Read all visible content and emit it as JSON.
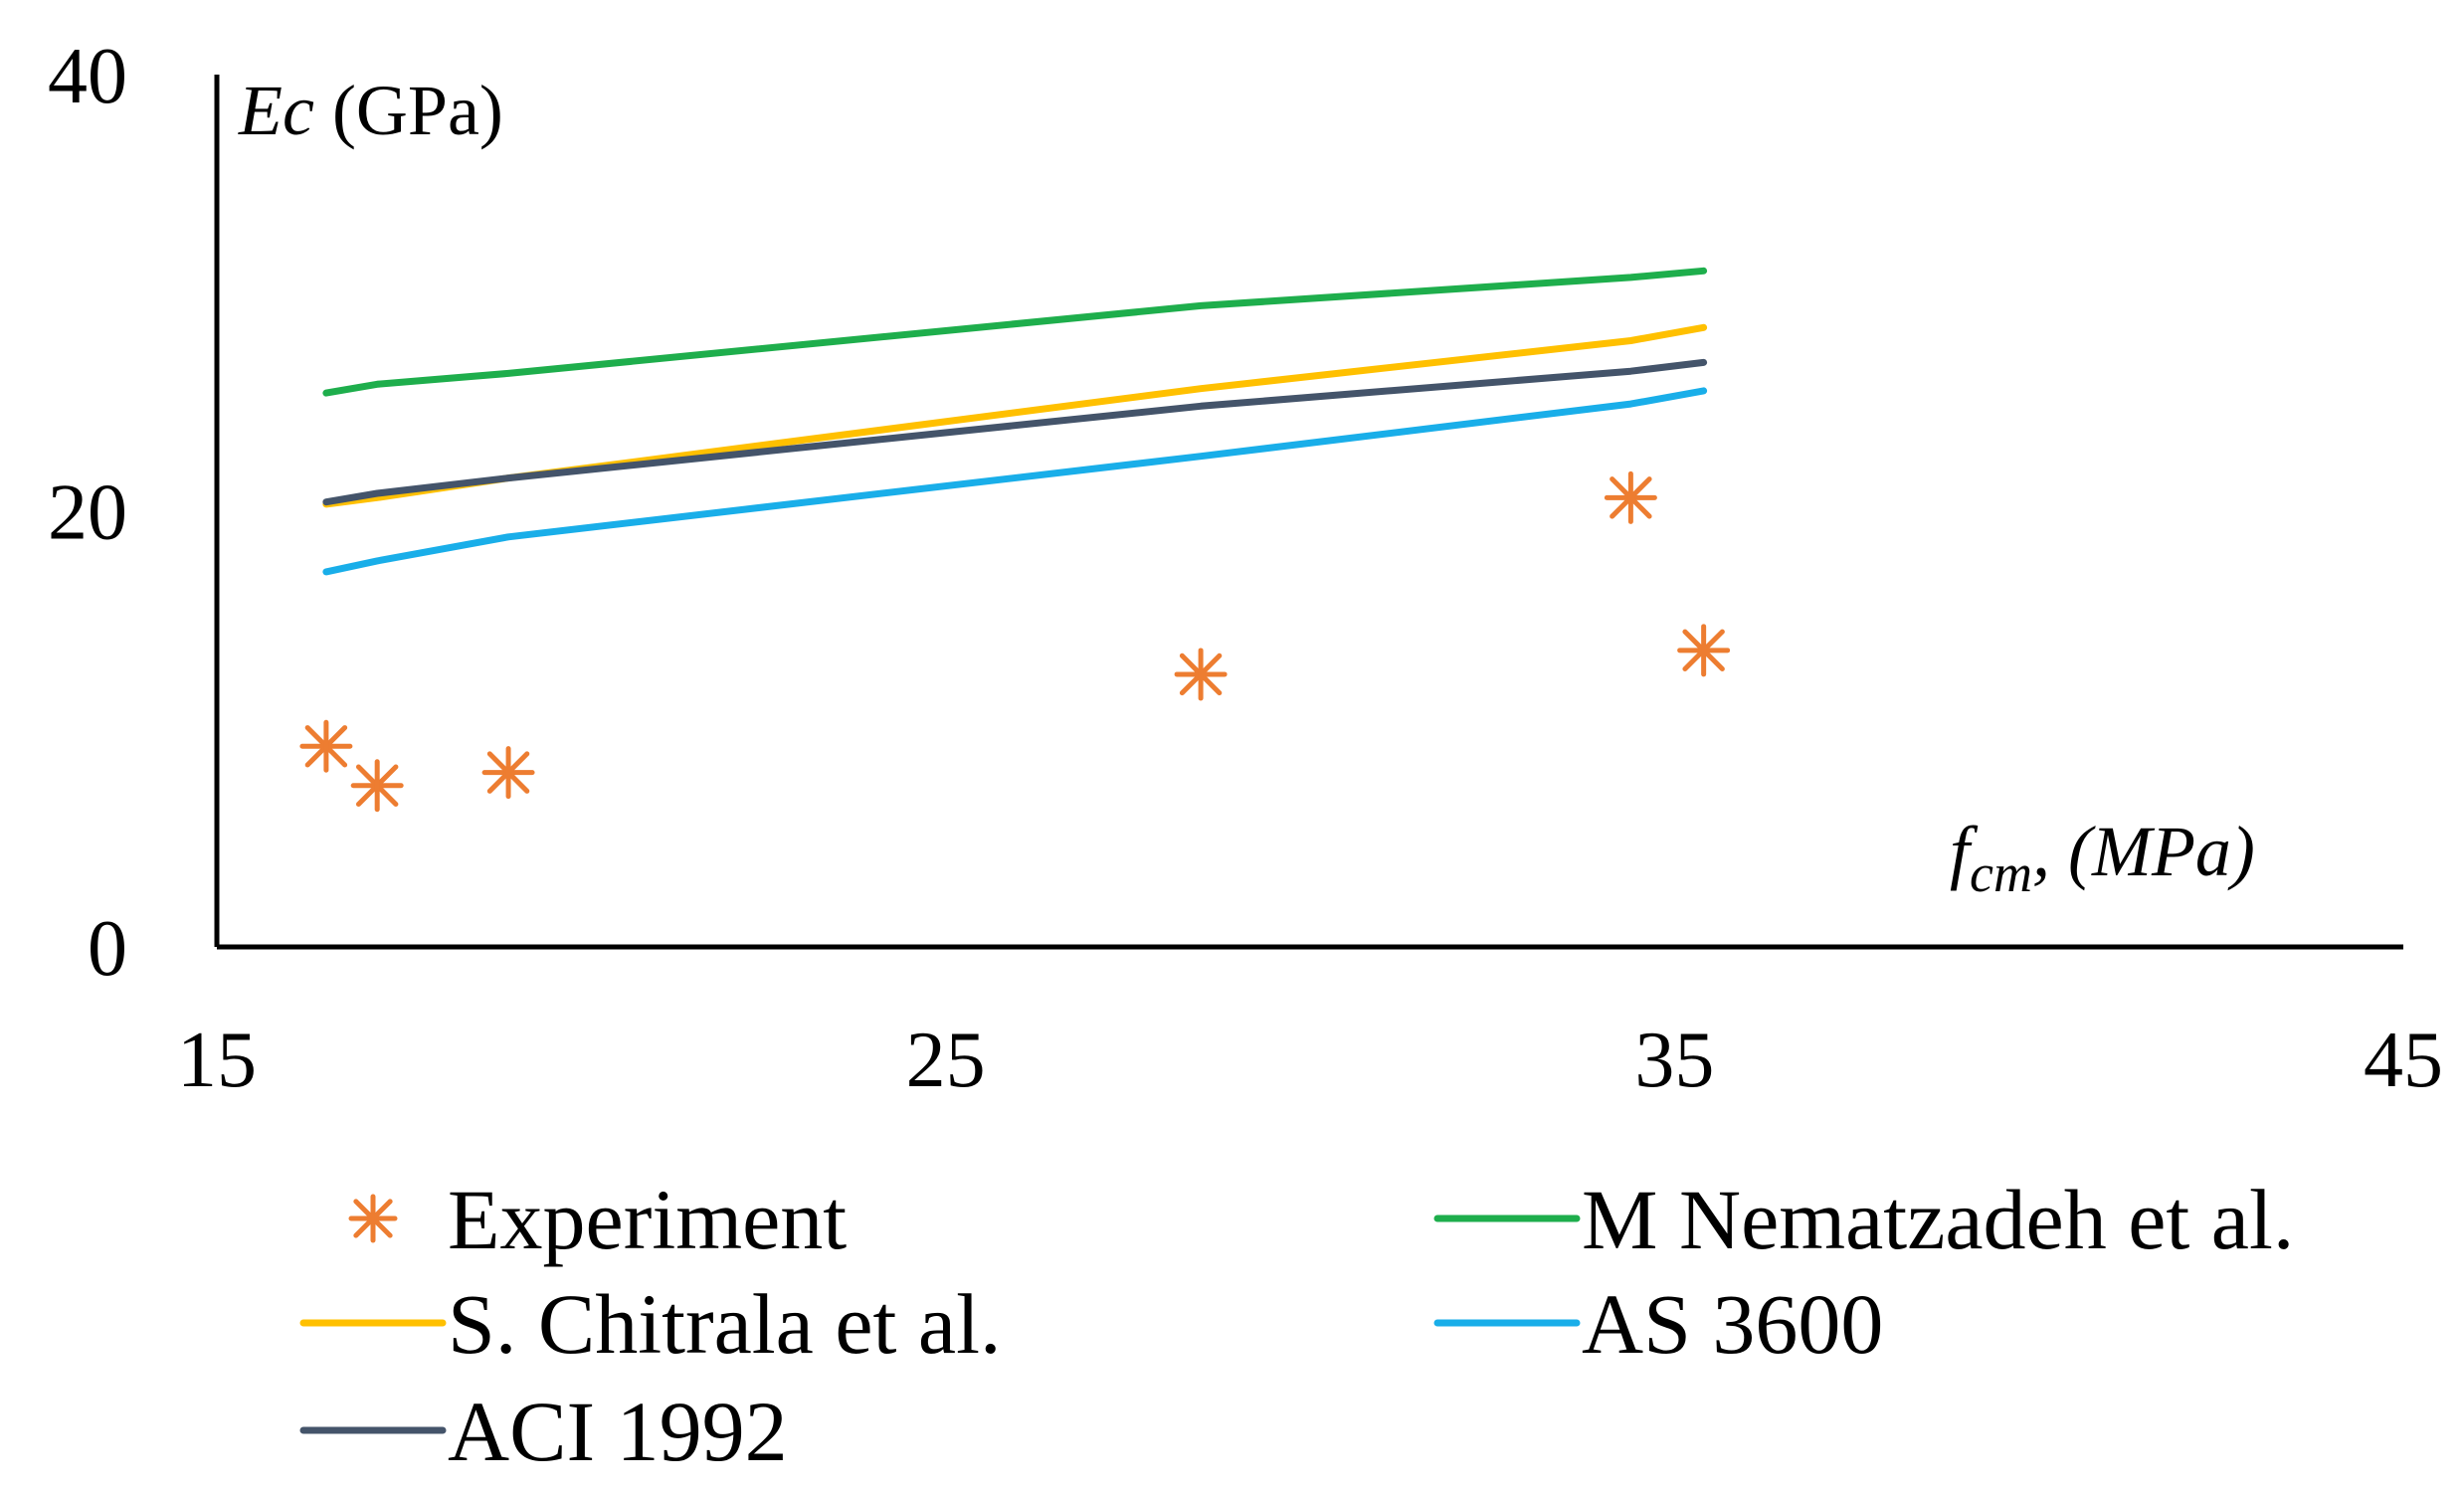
{
  "chart_data": {
    "type": "scatter+line",
    "title": "",
    "ylabel": {
      "symbol": "Ec",
      "unit": " (GPa)"
    },
    "xlabel": {
      "symbol": "f",
      "subscript": "cm",
      "rest": ", (MPa)"
    },
    "xlim": [
      15,
      45
    ],
    "ylim": [
      0,
      40
    ],
    "x_ticks": [
      15,
      25,
      35,
      45
    ],
    "y_ticks": [
      0,
      20,
      40
    ],
    "x_tick_labels": [
      "15",
      "25",
      "35",
      "45"
    ],
    "y_tick_labels": [
      "0",
      "20",
      "40"
    ],
    "grid": false,
    "legend_position": "bottom",
    "series": [
      {
        "name": "Experiment",
        "kind": "scatter",
        "marker": "asterisk",
        "color": "#ED7D31",
        "x": [
          16.5,
          17.2,
          19.0,
          28.5,
          34.4,
          35.4
        ],
        "y": [
          9.2,
          7.4,
          8.0,
          12.5,
          20.6,
          13.6
        ]
      },
      {
        "name": "M Nematzadeh et al.",
        "kind": "line",
        "color": "#1EAE4C",
        "x": [
          16.5,
          17.2,
          19.0,
          28.5,
          34.4,
          35.4
        ],
        "y": [
          25.4,
          25.8,
          26.3,
          29.4,
          30.7,
          31.0
        ]
      },
      {
        "name": "S. Chitrala et al.",
        "kind": "line",
        "color": "#FFC000",
        "x": [
          16.5,
          17.2,
          19.0,
          28.5,
          34.4,
          35.4
        ],
        "y": [
          20.3,
          20.6,
          21.5,
          25.6,
          27.8,
          28.4
        ]
      },
      {
        "name": "AS 3600",
        "kind": "line",
        "color": "#19AEE9",
        "x": [
          16.5,
          17.2,
          19.0,
          28.5,
          34.4,
          35.4
        ],
        "y": [
          17.2,
          17.7,
          18.8,
          22.5,
          24.9,
          25.5
        ]
      },
      {
        "name": "ACI 1992",
        "kind": "line",
        "color": "#44546A",
        "x": [
          16.5,
          17.2,
          19.0,
          28.5,
          34.4,
          35.4
        ],
        "y": [
          20.4,
          20.8,
          21.5,
          24.8,
          26.4,
          26.8
        ]
      }
    ],
    "legend_order": [
      "Experiment",
      "M Nematzadeh et al.",
      "S. Chitrala et al.",
      "AS 3600",
      "ACI 1992"
    ]
  }
}
